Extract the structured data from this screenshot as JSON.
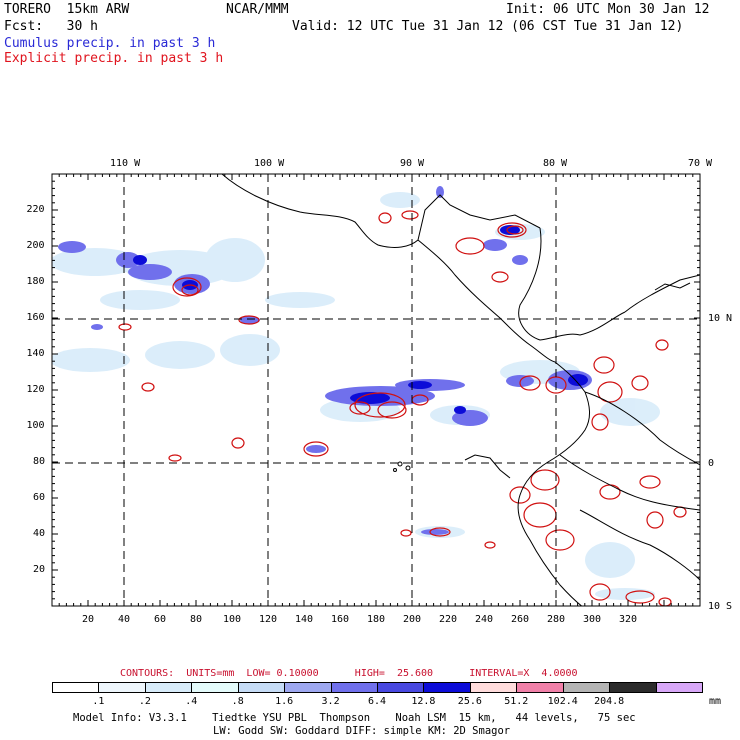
{
  "header": {
    "model": "TORERO  15km ARW",
    "org": "NCAR/MMM",
    "init": "Init: 06 UTC Mon 30 Jan 12",
    "fcst": "Fcst:   30 h",
    "valid": "Valid: 12 UTC Tue 31 Jan 12 (06 CST Tue 31 Jan 12)",
    "field1": "Cumulus precip. in past 3 h",
    "field2": "Explicit precip. in past 3 h"
  },
  "colors": {
    "field1": "#2a2ad6",
    "field2": "#e0141e",
    "contour": "#d01010",
    "coast": "#000000",
    "grid": "#000000"
  },
  "axes": {
    "x_ticks": [
      "20",
      "40",
      "60",
      "80",
      "100",
      "120",
      "140",
      "160",
      "180",
      "200",
      "220",
      "240",
      "260",
      "280",
      "300",
      "320"
    ],
    "y_ticks": [
      "220",
      "200",
      "180",
      "160",
      "140",
      "120",
      "100",
      "80",
      "60",
      "40",
      "20"
    ],
    "lon_labels": [
      "110 W",
      "100 W",
      "90 W",
      "80 W",
      "70 W"
    ],
    "lat_labels": [
      "10 N",
      "0",
      "10 S"
    ]
  },
  "contour_info": {
    "text": "CONTOURS:  UNITS=mm  LOW= 0.10000      HIGH=  25.600      INTERVAL=X  4.0000"
  },
  "legend": {
    "unit": "mm",
    "colors": [
      "#ffffff",
      "#eef6fc",
      "#d8ecfa",
      "#e4fbfb",
      "#c6dcf6",
      "#9ea8f0",
      "#7070ec",
      "#4848e0",
      "#0c0cd8",
      "#ffdcdc",
      "#f080a8",
      "#b4b4b4",
      "#2c2c2c",
      "#d8a8f8"
    ],
    "labels": [
      ".1",
      ".2",
      ".4",
      ".8",
      "1.6",
      "3.2",
      "6.4",
      "12.8",
      "25.6",
      "51.2",
      "102.4",
      "204.8"
    ]
  },
  "footer": {
    "line1": "Model Info: V3.3.1    Tiedtke YSU PBL  Thompson    Noah LSM  15 km,   44 levels,   75 sec",
    "line2": "LW: Godd SW: Goddard DIFF: simple KM: 2D Smagor"
  }
}
